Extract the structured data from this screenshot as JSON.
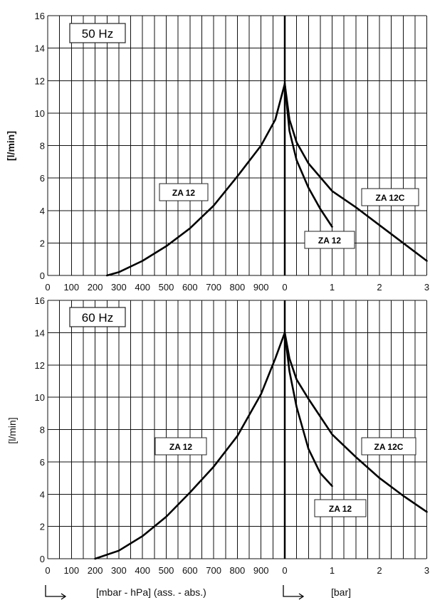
{
  "chart_data": [
    {
      "type": "line",
      "frequency": "50 Hz",
      "ylabel": "[l/min]",
      "ylim": [
        0,
        16
      ],
      "y_ticks": [
        "0",
        "2",
        "4",
        "6",
        "8",
        "10",
        "12",
        "14",
        "16"
      ],
      "x_ticks_vacuum": [
        "0",
        "100",
        "200",
        "300",
        "400",
        "500",
        "600",
        "700",
        "800",
        "900",
        "0"
      ],
      "x_ticks_pressure": [
        "1",
        "2",
        "3"
      ],
      "vacuum_series": [
        {
          "name": "ZA 12",
          "x": [
            250,
            300,
            400,
            500,
            600,
            700,
            800,
            900,
            960,
            1000
          ],
          "y": [
            0.0,
            0.2,
            0.9,
            1.8,
            2.9,
            4.3,
            6.1,
            8.0,
            9.6,
            11.8
          ]
        }
      ],
      "pressure_series": [
        {
          "name": "ZA 12",
          "x": [
            0,
            0.1,
            0.25,
            0.5,
            0.75,
            1.0
          ],
          "y": [
            11.8,
            8.9,
            7.1,
            5.4,
            4.1,
            3.0
          ]
        },
        {
          "name": "ZA 12C",
          "x": [
            0,
            0.1,
            0.25,
            0.5,
            1.0,
            1.5,
            2.0,
            2.5,
            3.0
          ],
          "y": [
            11.8,
            9.6,
            8.2,
            6.9,
            5.2,
            4.2,
            3.1,
            2.0,
            0.9
          ]
        }
      ]
    },
    {
      "type": "line",
      "frequency": "60 Hz",
      "ylabel": "[l/min]",
      "ylim": [
        0,
        16
      ],
      "y_ticks": [
        "0",
        "2",
        "4",
        "6",
        "8",
        "10",
        "12",
        "14",
        "16"
      ],
      "x_ticks_vacuum": [
        "0",
        "100",
        "200",
        "300",
        "400",
        "500",
        "600",
        "700",
        "800",
        "900",
        "0"
      ],
      "x_ticks_pressure": [
        "1",
        "2",
        "3"
      ],
      "vacuum_series": [
        {
          "name": "ZA 12",
          "x": [
            200,
            300,
            400,
            500,
            600,
            700,
            800,
            900,
            960,
            1000
          ],
          "y": [
            0.0,
            0.5,
            1.4,
            2.6,
            4.1,
            5.7,
            7.6,
            10.2,
            12.4,
            14.0
          ]
        }
      ],
      "pressure_series": [
        {
          "name": "ZA 12",
          "x": [
            0,
            0.1,
            0.25,
            0.5,
            0.75,
            1.0
          ],
          "y": [
            14.0,
            11.6,
            9.4,
            6.8,
            5.3,
            4.5
          ]
        },
        {
          "name": "ZA 12C",
          "x": [
            0,
            0.1,
            0.25,
            0.5,
            1.0,
            1.5,
            2.0,
            2.5,
            3.0
          ],
          "y": [
            14.0,
            12.4,
            11.1,
            9.9,
            7.7,
            6.3,
            5.0,
            3.9,
            2.9
          ]
        }
      ]
    }
  ],
  "footer": {
    "vacuum_unit": "[mbar - hPa] (ass. - abs.)",
    "pressure_unit": "[bar]"
  }
}
